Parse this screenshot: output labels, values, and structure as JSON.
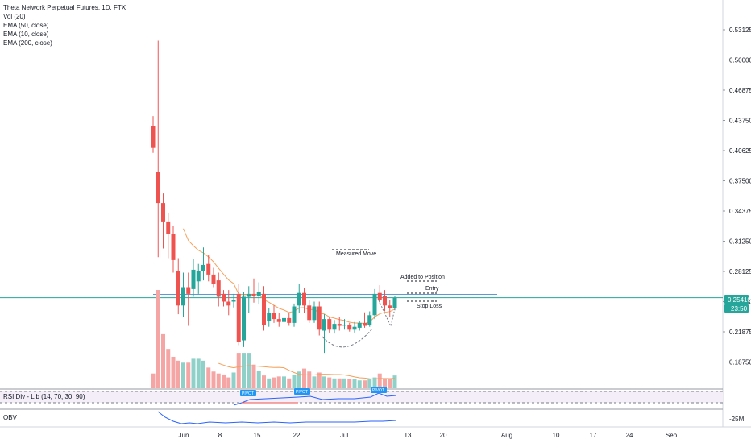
{
  "legend": {
    "title": "Theta Network Perpetual Futures, 1D, FTX",
    "lines": [
      "Vol (20)",
      "EMA (50, close)",
      "EMA (10, close)",
      "EMA (200, close)"
    ]
  },
  "panels": {
    "rsi_label": "RSI Div - Lib (14, 70, 30, 90)",
    "obv_label": "OBV",
    "obv_tick": "-25M",
    "pivot_label": "PIVOT"
  },
  "price_badge": {
    "price": "0.25410",
    "countdown": "23:50",
    "color": "#26a69a"
  },
  "annotations": {
    "measured_move": "Measured Move",
    "added_to_position": "Added to Position",
    "entry": "Entry",
    "stop_loss": "Stop Loss"
  },
  "colors": {
    "up": "#26a69a",
    "down": "#ef5350",
    "vol_up": "#8fd1c9",
    "vol_down": "#f5a5a3",
    "ema_orange": "#f5a05a",
    "line_blue": "#2962ff",
    "guide_blue": "#5b9bd5"
  },
  "chart_data": {
    "type": "candlestick",
    "title": "Theta Network Perpetual Futures, 1D, FTX",
    "y_axis": {
      "ticks": [
        "0.53125",
        "0.50000",
        "0.46875",
        "0.43750",
        "0.40625",
        "0.37500",
        "0.34375",
        "0.31250",
        "0.28125",
        "0.25000",
        "0.21875",
        "0.18750"
      ]
    },
    "x_axis": {
      "ticks": [
        "Jun",
        "8",
        "15",
        "22",
        "Jul",
        "13",
        "20",
        "Aug",
        "10",
        "17",
        "24",
        "Sep"
      ]
    },
    "candles": [
      {
        "o": 0.432,
        "h": 0.442,
        "l": 0.404,
        "c": 0.409
      },
      {
        "o": 0.384,
        "h": 0.52,
        "l": 0.296,
        "c": 0.352
      },
      {
        "o": 0.352,
        "h": 0.362,
        "l": 0.305,
        "c": 0.333
      },
      {
        "o": 0.333,
        "h": 0.342,
        "l": 0.295,
        "c": 0.32
      },
      {
        "o": 0.32,
        "h": 0.328,
        "l": 0.28,
        "c": 0.293
      },
      {
        "o": 0.282,
        "h": 0.295,
        "l": 0.237,
        "c": 0.246
      },
      {
        "o": 0.246,
        "h": 0.28,
        "l": 0.234,
        "c": 0.265
      },
      {
        "o": 0.265,
        "h": 0.28,
        "l": 0.225,
        "c": 0.258
      },
      {
        "o": 0.263,
        "h": 0.294,
        "l": 0.255,
        "c": 0.283
      },
      {
        "o": 0.271,
        "h": 0.289,
        "l": 0.258,
        "c": 0.282
      },
      {
        "o": 0.282,
        "h": 0.306,
        "l": 0.272,
        "c": 0.288
      },
      {
        "o": 0.289,
        "h": 0.298,
        "l": 0.271,
        "c": 0.278
      },
      {
        "o": 0.278,
        "h": 0.285,
        "l": 0.265,
        "c": 0.268
      },
      {
        "o": 0.272,
        "h": 0.28,
        "l": 0.245,
        "c": 0.255
      },
      {
        "o": 0.258,
        "h": 0.262,
        "l": 0.245,
        "c": 0.25
      },
      {
        "o": 0.25,
        "h": 0.262,
        "l": 0.236,
        "c": 0.246
      },
      {
        "o": 0.25,
        "h": 0.258,
        "l": 0.244,
        "c": 0.252
      },
      {
        "o": 0.258,
        "h": 0.268,
        "l": 0.205,
        "c": 0.208
      },
      {
        "o": 0.21,
        "h": 0.26,
        "l": 0.203,
        "c": 0.255
      },
      {
        "o": 0.255,
        "h": 0.266,
        "l": 0.238,
        "c": 0.258
      },
      {
        "o": 0.258,
        "h": 0.274,
        "l": 0.249,
        "c": 0.256
      },
      {
        "o": 0.256,
        "h": 0.27,
        "l": 0.247,
        "c": 0.26
      },
      {
        "o": 0.258,
        "h": 0.266,
        "l": 0.22,
        "c": 0.226
      },
      {
        "o": 0.23,
        "h": 0.243,
        "l": 0.224,
        "c": 0.238
      },
      {
        "o": 0.238,
        "h": 0.246,
        "l": 0.228,
        "c": 0.232
      },
      {
        "o": 0.232,
        "h": 0.238,
        "l": 0.224,
        "c": 0.229
      },
      {
        "o": 0.229,
        "h": 0.238,
        "l": 0.222,
        "c": 0.233
      },
      {
        "o": 0.233,
        "h": 0.238,
        "l": 0.225,
        "c": 0.228
      },
      {
        "o": 0.228,
        "h": 0.248,
        "l": 0.224,
        "c": 0.245
      },
      {
        "o": 0.246,
        "h": 0.268,
        "l": 0.238,
        "c": 0.259
      },
      {
        "o": 0.259,
        "h": 0.264,
        "l": 0.238,
        "c": 0.246
      },
      {
        "o": 0.246,
        "h": 0.252,
        "l": 0.228,
        "c": 0.231
      },
      {
        "o": 0.231,
        "h": 0.25,
        "l": 0.228,
        "c": 0.245
      },
      {
        "o": 0.245,
        "h": 0.25,
        "l": 0.215,
        "c": 0.221
      },
      {
        "o": 0.22,
        "h": 0.237,
        "l": 0.197,
        "c": 0.232
      },
      {
        "o": 0.232,
        "h": 0.234,
        "l": 0.218,
        "c": 0.221
      },
      {
        "o": 0.221,
        "h": 0.231,
        "l": 0.217,
        "c": 0.227
      },
      {
        "o": 0.227,
        "h": 0.234,
        "l": 0.22,
        "c": 0.225
      },
      {
        "o": 0.226,
        "h": 0.232,
        "l": 0.221,
        "c": 0.226
      },
      {
        "o": 0.226,
        "h": 0.228,
        "l": 0.219,
        "c": 0.221
      },
      {
        "o": 0.221,
        "h": 0.229,
        "l": 0.218,
        "c": 0.224
      },
      {
        "o": 0.223,
        "h": 0.23,
        "l": 0.22,
        "c": 0.228
      },
      {
        "o": 0.228,
        "h": 0.239,
        "l": 0.223,
        "c": 0.225
      },
      {
        "o": 0.226,
        "h": 0.24,
        "l": 0.224,
        "c": 0.236
      },
      {
        "o": 0.236,
        "h": 0.263,
        "l": 0.232,
        "c": 0.258
      },
      {
        "o": 0.259,
        "h": 0.267,
        "l": 0.247,
        "c": 0.252
      },
      {
        "o": 0.256,
        "h": 0.262,
        "l": 0.24,
        "c": 0.246
      },
      {
        "o": 0.246,
        "h": 0.252,
        "l": 0.234,
        "c": 0.243
      },
      {
        "o": 0.243,
        "h": 0.256,
        "l": 0.241,
        "c": 0.254
      }
    ],
    "volume": [
      15,
      100,
      55,
      40,
      32,
      28,
      26,
      26,
      30,
      30,
      28,
      21,
      17,
      15,
      14,
      11,
      16,
      36,
      36,
      36,
      24,
      18,
      13,
      10,
      11,
      12,
      12,
      10,
      14,
      17,
      20,
      17,
      12,
      16,
      12,
      11,
      10,
      10,
      10,
      9,
      9,
      8,
      8,
      9,
      11,
      15,
      10,
      9,
      13
    ]
  }
}
